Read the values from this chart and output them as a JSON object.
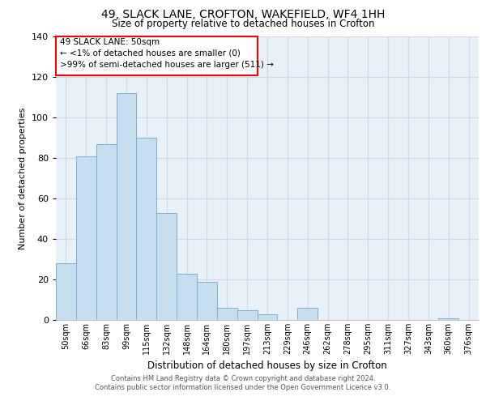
{
  "title1": "49, SLACK LANE, CROFTON, WAKEFIELD, WF4 1HH",
  "title2": "Size of property relative to detached houses in Crofton",
  "xlabel": "Distribution of detached houses by size in Crofton",
  "ylabel": "Number of detached properties",
  "bin_labels": [
    "50sqm",
    "66sqm",
    "83sqm",
    "99sqm",
    "115sqm",
    "132sqm",
    "148sqm",
    "164sqm",
    "180sqm",
    "197sqm",
    "213sqm",
    "229sqm",
    "246sqm",
    "262sqm",
    "278sqm",
    "295sqm",
    "311sqm",
    "327sqm",
    "343sqm",
    "360sqm",
    "376sqm"
  ],
  "bar_heights": [
    28,
    81,
    87,
    112,
    90,
    53,
    23,
    19,
    6,
    5,
    3,
    0,
    6,
    0,
    0,
    0,
    0,
    0,
    0,
    1,
    0
  ],
  "bar_color": "#c6dff0",
  "bar_edge_color": "#7bafd4",
  "annotation_line1": "49 SLACK LANE: 50sqm",
  "annotation_line2": "← <1% of detached houses are smaller (0)",
  "annotation_line3": ">99% of semi-detached houses are larger (511) →",
  "ylim": [
    0,
    140
  ],
  "yticks": [
    0,
    20,
    40,
    60,
    80,
    100,
    120,
    140
  ],
  "footer_line1": "Contains HM Land Registry data © Crown copyright and database right 2024.",
  "footer_line2": "Contains public sector information licensed under the Open Government Licence v3.0.",
  "bg_color": "#e8f0f8",
  "grid_color": "#d0d8e8"
}
